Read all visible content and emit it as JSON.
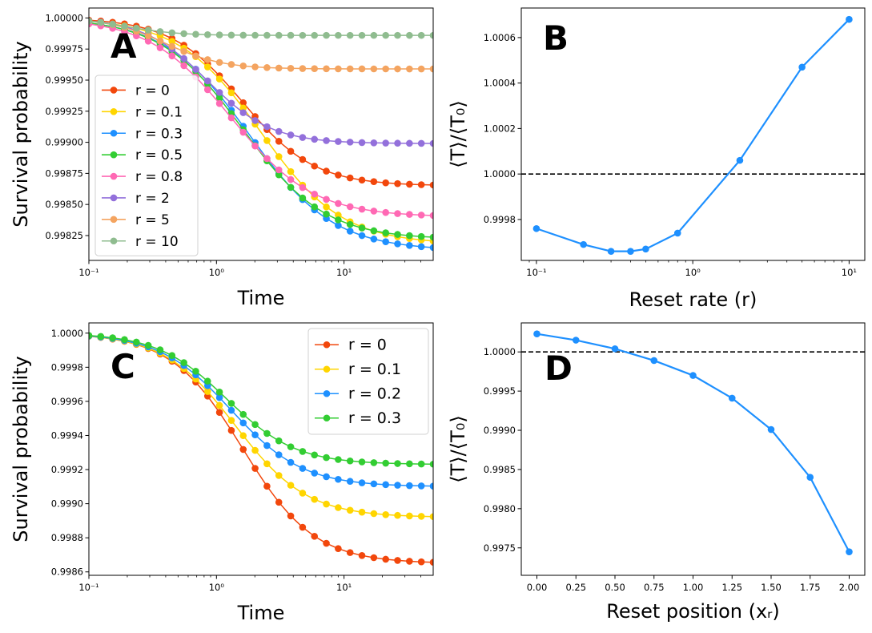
{
  "chart_data": [
    {
      "type": "line",
      "panel": "A",
      "ylabel": "Survival probability",
      "xlabel": "Time",
      "xscale": "log",
      "xlim": [
        0.1,
        50
      ],
      "ylim": [
        0.99805,
        1.00008
      ],
      "xticks": [
        {
          "v": 0.1,
          "label": "10⁻¹"
        },
        {
          "v": 1,
          "label": "10⁰"
        },
        {
          "v": 10,
          "label": "10¹"
        }
      ],
      "yticks": [
        {
          "v": 0.99825,
          "label": "0.99825"
        },
        {
          "v": 0.9985,
          "label": "0.99850"
        },
        {
          "v": 0.99875,
          "label": "0.99875"
        },
        {
          "v": 0.999,
          "label": "0.99900"
        },
        {
          "v": 0.99925,
          "label": "0.99925"
        },
        {
          "v": 0.9995,
          "label": "0.99950"
        },
        {
          "v": 0.99975,
          "label": "0.99975"
        },
        {
          "v": 1.0,
          "label": "1.00000"
        }
      ],
      "legend": "upper-left",
      "series": [
        {
          "name": "r = 0",
          "color": "#f2470c",
          "inf": 0.99865,
          "tau": 1.6,
          "sigma": 0.28
        },
        {
          "name": "r = 0.1",
          "color": "#ffd500",
          "inf": 0.99818,
          "tau": 2.2,
          "sigma": 0.32
        },
        {
          "name": "r = 0.3",
          "color": "#1e90ff",
          "inf": 0.99813,
          "tau": 1.8,
          "sigma": 0.33
        },
        {
          "name": "r = 0.5",
          "color": "#32cd32",
          "inf": 0.99822,
          "tau": 1.6,
          "sigma": 0.32
        },
        {
          "name": "r = 0.8",
          "color": "#ff69b4",
          "inf": 0.9984,
          "tau": 1.3,
          "sigma": 0.32
        },
        {
          "name": "r = 2",
          "color": "#9370db",
          "inf": 0.99899,
          "tau": 0.85,
          "sigma": 0.25
        },
        {
          "name": "r = 5",
          "color": "#f4a460",
          "inf": 0.99959,
          "tau": 0.4,
          "sigma": 0.22
        },
        {
          "name": "r = 10",
          "color": "#8fbc8f",
          "inf": 0.99986,
          "tau": 0.2,
          "sigma": 0.2
        }
      ]
    },
    {
      "type": "line",
      "panel": "B",
      "ylabel": "⟨T⟩/⟨T₀⟩",
      "xlabel": "Reset rate (r)",
      "xscale": "log",
      "xlim": [
        0.08,
        12.6
      ],
      "ylim": [
        0.99962,
        1.00073
      ],
      "xticks": [
        {
          "v": 0.1,
          "label": "10⁻¹"
        },
        {
          "v": 1,
          "label": "10⁰"
        },
        {
          "v": 10,
          "label": "10¹"
        }
      ],
      "yticks": [
        {
          "v": 0.9998,
          "label": "0.9998"
        },
        {
          "v": 1.0,
          "label": "1.0000"
        },
        {
          "v": 1.0002,
          "label": "1.0002"
        },
        {
          "v": 1.0004,
          "label": "1.0004"
        },
        {
          "v": 1.0006,
          "label": "1.0006"
        }
      ],
      "reference_line": 1.0,
      "series": [
        {
          "name": "⟨T⟩/⟨T₀⟩",
          "color": "#1e90ff",
          "x": [
            0.1,
            0.2,
            0.3,
            0.4,
            0.5,
            0.8,
            2,
            5,
            10
          ],
          "y": [
            0.99976,
            0.99969,
            0.99966,
            0.99966,
            0.99967,
            0.99974,
            1.00006,
            1.00047,
            1.00068
          ]
        }
      ]
    },
    {
      "type": "line",
      "panel": "C",
      "ylabel": "Survival probability",
      "xlabel": "Time",
      "xscale": "log",
      "xlim": [
        0.1,
        50
      ],
      "ylim": [
        0.99858,
        1.00006
      ],
      "xticks": [
        {
          "v": 0.1,
          "label": "10⁻¹"
        },
        {
          "v": 1,
          "label": "10⁰"
        },
        {
          "v": 10,
          "label": "10¹"
        }
      ],
      "yticks": [
        {
          "v": 0.9986,
          "label": "0.9986"
        },
        {
          "v": 0.9988,
          "label": "0.9988"
        },
        {
          "v": 0.999,
          "label": "0.9990"
        },
        {
          "v": 0.9992,
          "label": "0.9992"
        },
        {
          "v": 0.9994,
          "label": "0.9994"
        },
        {
          "v": 0.9996,
          "label": "0.9996"
        },
        {
          "v": 0.9998,
          "label": "0.9998"
        },
        {
          "v": 1.0,
          "label": "1.0000"
        }
      ],
      "legend": "upper-right",
      "series": [
        {
          "name": "r = 0",
          "color": "#f2470c",
          "inf": 0.99865,
          "tau": 1.6,
          "sigma": 0.28
        },
        {
          "name": "r = 0.1",
          "color": "#ffd500",
          "inf": 0.99892,
          "tau": 1.4,
          "sigma": 0.28
        },
        {
          "name": "r = 0.2",
          "color": "#1e90ff",
          "inf": 0.9991,
          "tau": 1.3,
          "sigma": 0.28
        },
        {
          "name": "r = 0.3",
          "color": "#32cd32",
          "inf": 0.99923,
          "tau": 1.2,
          "sigma": 0.27
        }
      ]
    },
    {
      "type": "line",
      "panel": "D",
      "ylabel": "⟨T⟩/⟨T₀⟩",
      "xlabel": "Reset position (xᵣ)",
      "xscale": "linear",
      "xlim": [
        -0.1,
        2.1
      ],
      "ylim": [
        0.99715,
        1.00037
      ],
      "xticks": [
        {
          "v": 0,
          "label": "0.00"
        },
        {
          "v": 0.25,
          "label": "0.25"
        },
        {
          "v": 0.5,
          "label": "0.50"
        },
        {
          "v": 0.75,
          "label": "0.75"
        },
        {
          "v": 1.0,
          "label": "1.00"
        },
        {
          "v": 1.25,
          "label": "1.25"
        },
        {
          "v": 1.5,
          "label": "1.50"
        },
        {
          "v": 1.75,
          "label": "1.75"
        },
        {
          "v": 2.0,
          "label": "2.00"
        }
      ],
      "yticks": [
        {
          "v": 0.9975,
          "label": "0.9975"
        },
        {
          "v": 0.998,
          "label": "0.9980"
        },
        {
          "v": 0.9985,
          "label": "0.9985"
        },
        {
          "v": 0.999,
          "label": "0.9990"
        },
        {
          "v": 0.9995,
          "label": "0.9995"
        },
        {
          "v": 1.0,
          "label": "1.0000"
        }
      ],
      "reference_line": 1.0,
      "series": [
        {
          "name": "⟨T⟩/⟨T₀⟩",
          "color": "#1e90ff",
          "x": [
            0,
            0.25,
            0.5,
            0.75,
            1.0,
            1.25,
            1.5,
            1.75,
            2.0
          ],
          "y": [
            1.00023,
            1.00015,
            1.00004,
            0.99989,
            0.9997,
            0.99941,
            0.99901,
            0.9984,
            0.99745
          ]
        }
      ]
    }
  ]
}
